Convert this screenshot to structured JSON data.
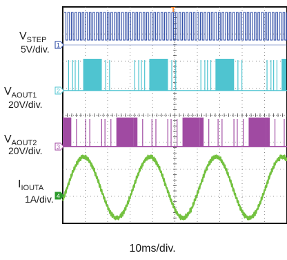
{
  "chart_data": {
    "type": "line",
    "grid": true,
    "background": "#000000",
    "time_per_div": "10ms/div.",
    "divisions_x": 10,
    "divisions_y": 8,
    "trigger_marker": "T",
    "channels": [
      {
        "id": "1",
        "name_main": "V",
        "name_sub": "STEP",
        "scale": "5V/div.",
        "color": "#1f3f9f",
        "label_color": "#1f3f9f"
      },
      {
        "id": "2",
        "name_main": "V",
        "name_sub": "AOUT1",
        "scale": "20V/div.",
        "color": "#4fc4d0",
        "label_color": "#4fc4d0"
      },
      {
        "id": "3",
        "name_main": "V",
        "name_sub": "AOUT2",
        "scale": "20V/div.",
        "color": "#a04aa2",
        "label_color": "#a04aa2"
      },
      {
        "id": "4",
        "name_main": "I",
        "name_sub": "IOUTA",
        "scale": "1A/div.",
        "color": "#73c13f",
        "label_color": "#2c9a2c"
      }
    ],
    "waveform_period_ms": 29.5,
    "waveform_phase_ms": 2.0,
    "visible_time_ms": [
      0,
      100
    ]
  }
}
